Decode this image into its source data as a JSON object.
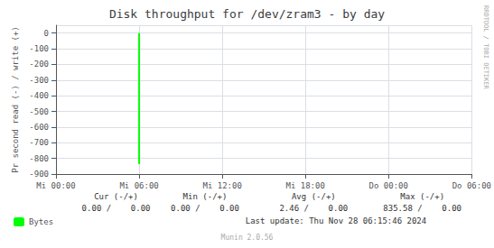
{
  "chart_data": {
    "type": "bar",
    "title": "Disk throughput for /dev/zram3 - by day",
    "ylabel": "Pr second read (-) / write (+)",
    "xlim": [
      0,
      30
    ],
    "xticks": [
      {
        "value": 0,
        "label": "Mi 00:00"
      },
      {
        "value": 6,
        "label": "Mi 06:00"
      },
      {
        "value": 12,
        "label": "Mi 12:00"
      },
      {
        "value": 18,
        "label": "Mi 18:00"
      },
      {
        "value": 24,
        "label": "Do 00:00"
      },
      {
        "value": 30,
        "label": "Do 06:00"
      }
    ],
    "ylim": [
      -900,
      50
    ],
    "yticks": [
      0,
      -100,
      -200,
      -300,
      -400,
      -500,
      -600,
      -700,
      -800,
      -900
    ],
    "grid": true,
    "legend": "lower left",
    "x": [
      6
    ],
    "series": [
      {
        "name": "Bytes",
        "color": "#00ff00",
        "values": [
          -835.58
        ]
      }
    ],
    "annotations": [
      "Cur (-/+)",
      "Min (-/+)",
      "Avg (-/+)",
      "Max (-/+)",
      "0.00 /    0.00",
      "0.00 /    0.00",
      "2.46 /    0.00",
      "835.58 /    0.00",
      "Last update: Thu Nov 28 06:15:46 2024",
      "RRDTOOL / TOBI OETIKER",
      "Munin 2.0.56"
    ]
  }
}
